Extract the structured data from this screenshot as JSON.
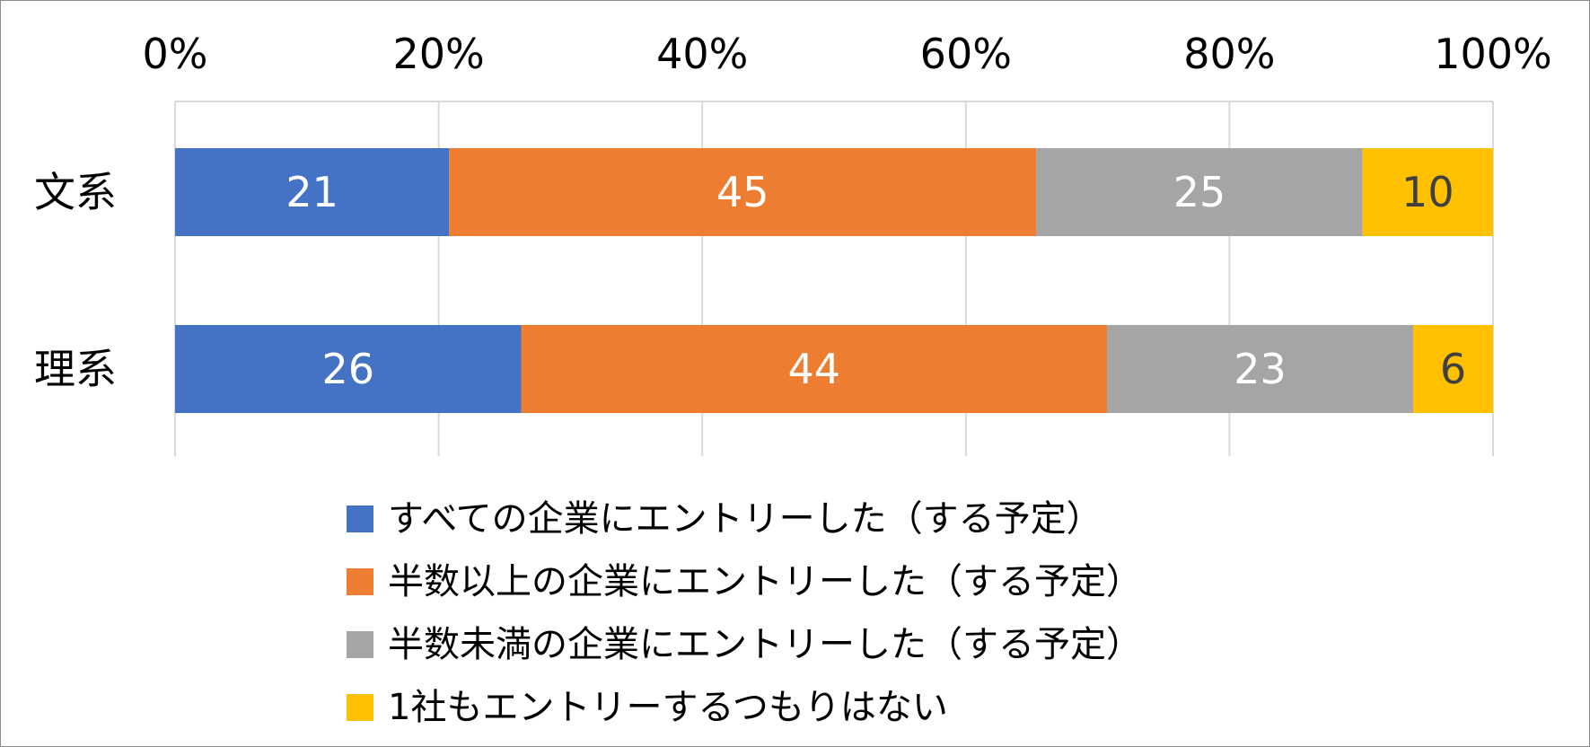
{
  "chart_data": {
    "type": "bar",
    "orientation": "horizontal",
    "stacked": "percent",
    "categories": [
      "文系",
      "理系"
    ],
    "series": [
      {
        "name": "すべての企業にエントリーした（する予定）",
        "values": [
          21,
          26
        ],
        "color": "#4472C4",
        "label_color": "#ffffff"
      },
      {
        "name": "半数以上の企業にエントリーした（する予定）",
        "values": [
          45,
          44
        ],
        "color": "#ED7D31",
        "label_color": "#ffffff"
      },
      {
        "name": "半数未満の企業にエントリーした（する予定）",
        "values": [
          25,
          23
        ],
        "color": "#A5A5A5",
        "label_color": "#ffffff"
      },
      {
        "name": "1社もエントリーするつもりはない",
        "values": [
          10,
          6
        ],
        "color": "#FFC000",
        "label_color": "#404040"
      }
    ],
    "x_ticks": [
      "0%",
      "20%",
      "40%",
      "60%",
      "80%",
      "100%"
    ],
    "xlim": [
      0,
      100
    ],
    "x_axis_position": "top",
    "grid": true,
    "legend_position": "bottom",
    "title": "",
    "xlabel": "",
    "ylabel": ""
  }
}
